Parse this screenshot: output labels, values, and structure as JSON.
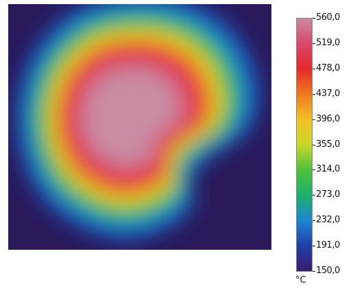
{
  "chart_data": {
    "type": "heatmap",
    "title": "",
    "xlabel": "",
    "ylabel": "",
    "colorbar": {
      "unit": "°C",
      "min": 150.0,
      "max": 560.0,
      "tick_labels": [
        "560,0",
        "519,0",
        "478,0",
        "437,0",
        "396,0",
        "355,0",
        "314,0",
        "273,0",
        "232,0",
        "191,0",
        "150,0"
      ],
      "colormap": [
        "#3a1d6e",
        "#1f3fa8",
        "#1e86d2",
        "#1bb06a",
        "#4ec13a",
        "#c9d82a",
        "#f2c024",
        "#ef7a1f",
        "#e52a2a",
        "#d9486a",
        "#c98aa3"
      ]
    },
    "background_value": 150.0,
    "peak_value": 560.0,
    "hot_region": "comma-shaped hotspot, center-left of the field, with a notch on the lower-right side"
  }
}
